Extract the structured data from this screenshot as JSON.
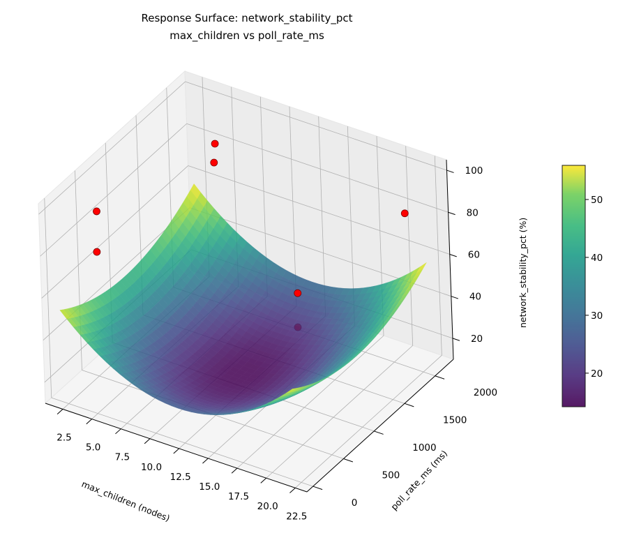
{
  "chart_data": {
    "type": "surface3d",
    "title": "Response Surface: network_stability_pct",
    "subtitle": "max_children vs poll_rate_ms",
    "xlabel": "max_children (nodes)",
    "ylabel": "poll_rate_ms (ms)",
    "zlabel": "network_stability_pct (%)",
    "x_ticks": [
      "2.5",
      "5.0",
      "7.5",
      "10.0",
      "12.5",
      "15.0",
      "17.5",
      "20.0",
      "22.5"
    ],
    "y_ticks": [
      "0",
      "500",
      "1000",
      "1500",
      "2000"
    ],
    "z_ticks": [
      "20",
      "40",
      "60",
      "80",
      "100"
    ],
    "xlim": [
      1,
      23.5
    ],
    "ylim": [
      -100,
      2300
    ],
    "zlim": [
      10,
      105
    ],
    "surface": {
      "x_range": [
        2,
        22
      ],
      "y_range": [
        0,
        2200
      ],
      "model": "z = 14 + 0.28*(x-12)^2 + 0.0000105*(y-1050)^2",
      "colormap": "viridis",
      "alpha": 0.85
    },
    "points": [
      {
        "x": 5.5,
        "y": 1916,
        "z": 89
      },
      {
        "x": 6.0,
        "y": 1800,
        "z": 84
      },
      {
        "x": 2.1,
        "y": 620,
        "z": 84.5
      },
      {
        "x": 2.0,
        "y": 620,
        "z": 65
      },
      {
        "x": 21.3,
        "y": 2010,
        "z": 83
      },
      {
        "x": 12.25,
        "y": 1916,
        "z": 30.5
      },
      {
        "x": 12.25,
        "y": 1900,
        "z": 14.7
      }
    ],
    "point_color": "#ff0000",
    "colorbar": {
      "ticks": [
        "20",
        "30",
        "40",
        "50"
      ],
      "range": [
        14.2,
        55.9
      ]
    },
    "grid": true
  }
}
